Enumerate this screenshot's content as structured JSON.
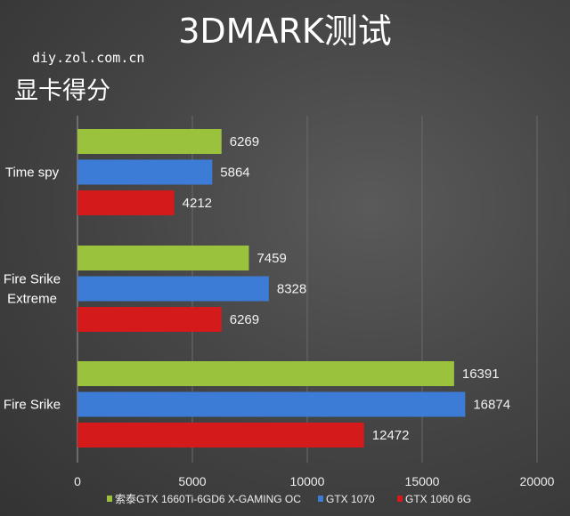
{
  "chart_data": {
    "type": "bar",
    "orientation": "horizontal",
    "title": "3DMARK测试",
    "source": "diy.zol.com.cn",
    "subtitle": "显卡得分",
    "categories": [
      "Time spy",
      "Fire Srike Extreme",
      "Fire Srike"
    ],
    "category_lines": [
      [
        "Time spy"
      ],
      [
        "Fire Srike",
        "Extreme"
      ],
      [
        "Fire Srike"
      ]
    ],
    "series": [
      {
        "name": "索泰GTX 1660Ti-6GD6 X-GAMING OC",
        "color": "#9ac23c",
        "values": [
          6269,
          7459,
          16391
        ]
      },
      {
        "name": "GTX 1070",
        "color": "#3c7bd6",
        "values": [
          5864,
          8328,
          16874
        ]
      },
      {
        "name": "GTX 1060 6G",
        "color": "#d41a1a",
        "values": [
          4212,
          6269,
          12472
        ]
      }
    ],
    "xlim": [
      0,
      20000
    ],
    "xticks": [
      "0",
      "5000",
      "10000",
      "15000",
      "20000"
    ],
    "xtick_values": [
      0,
      5000,
      10000,
      15000,
      20000
    ],
    "grid": true,
    "legend": "bottom"
  }
}
